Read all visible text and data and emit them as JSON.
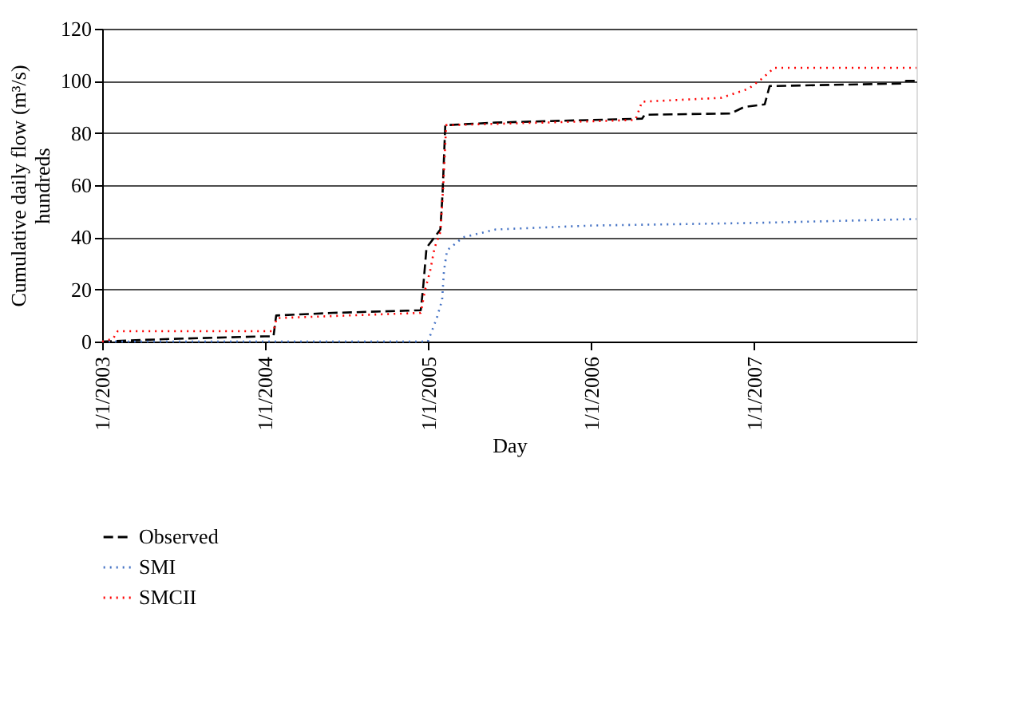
{
  "chart_data": {
    "type": "line",
    "xlabel": "Day",
    "ylabel": "Cumulative daily flow (m³/s)\nhundreds",
    "xlim": [
      "2003-01-01",
      "2007-12-31"
    ],
    "ylim": [
      0,
      120
    ],
    "yticks": [
      0,
      20,
      40,
      60,
      80,
      100,
      120
    ],
    "xticks": [
      {
        "value": "2003-01-01",
        "label": "1/1/2003"
      },
      {
        "value": "2004-01-01",
        "label": "1/1/2004"
      },
      {
        "value": "2005-01-01",
        "label": "1/1/2005"
      },
      {
        "value": "2006-01-01",
        "label": "1/1/2006"
      },
      {
        "value": "2007-01-01",
        "label": "1/1/2007"
      }
    ],
    "grid": "y",
    "legend": "bottom",
    "marker": "none",
    "series": [
      {
        "name": "Observed",
        "color": "#000000",
        "line_style": "dashed",
        "x": [
          "2003-01-01",
          "2003-06-01",
          "2003-12-31",
          "2004-01-20",
          "2004-01-26",
          "2004-06-01",
          "2004-12-15",
          "2004-12-20",
          "2004-12-28",
          "2005-01-15",
          "2005-01-28",
          "2005-02-02",
          "2005-02-08",
          "2005-06-01",
          "2006-01-01",
          "2006-04-25",
          "2006-05-01",
          "2006-11-10",
          "2006-12-10",
          "2007-01-25",
          "2007-02-05",
          "2007-11-30",
          "2007-12-08",
          "2007-12-31"
        ],
        "values": [
          0,
          1,
          2,
          2,
          10,
          11,
          12,
          20,
          36,
          40,
          43,
          57,
          83,
          84,
          85,
          85.5,
          87,
          87.5,
          90,
          91,
          98,
          99,
          100,
          100
        ]
      },
      {
        "name": "SMI",
        "color": "#4472c4",
        "line_style": "dotted",
        "x": [
          "2003-01-01",
          "2004-12-31",
          "2005-01-20",
          "2005-02-01",
          "2005-02-05",
          "2005-02-12",
          "2005-03-20",
          "2005-06-01",
          "2006-01-01",
          "2007-01-01",
          "2007-12-31"
        ],
        "values": [
          0,
          0,
          9,
          16,
          27,
          35,
          40,
          43,
          44.5,
          45.5,
          47
        ]
      },
      {
        "name": "SMCII",
        "color": "#ff0000",
        "line_style": "dotted",
        "x": [
          "2003-01-01",
          "2003-01-25",
          "2003-02-05",
          "2004-01-20",
          "2004-01-27",
          "2004-12-15",
          "2004-12-25",
          "2005-01-05",
          "2005-01-15",
          "2005-01-28",
          "2005-02-03",
          "2005-02-10",
          "2006-01-01",
          "2006-04-10",
          "2006-04-25",
          "2006-10-20",
          "2006-12-20",
          "2007-01-20",
          "2007-02-15",
          "2007-12-31"
        ],
        "values": [
          0,
          1,
          4,
          4,
          9,
          11,
          20,
          27,
          36,
          42,
          58,
          83,
          84.5,
          85,
          92,
          93.5,
          97,
          101,
          105,
          105
        ]
      }
    ]
  }
}
